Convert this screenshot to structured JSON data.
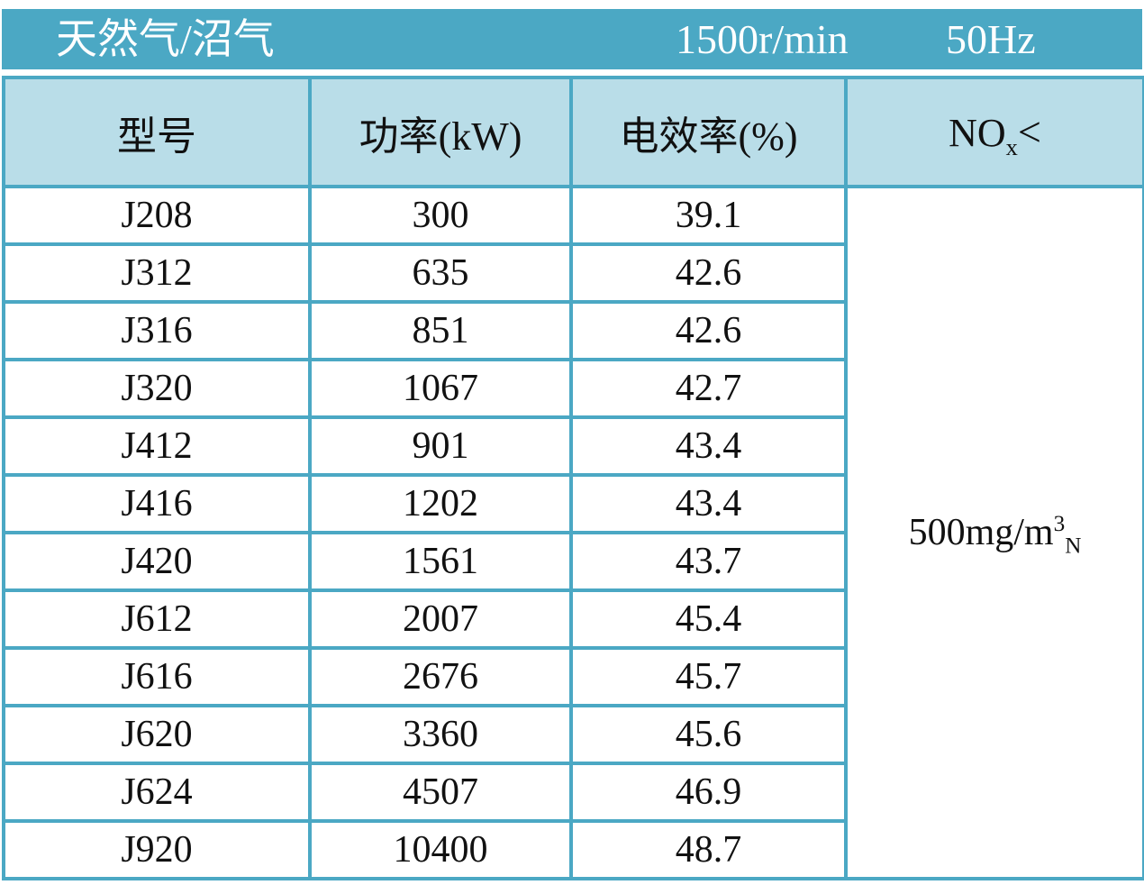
{
  "colors": {
    "teal": "#4BA8C4",
    "light_blue": "#B9DDE8",
    "title_text": "#ffffff",
    "body_text": "#111111"
  },
  "title_bar": {
    "fuel_type": "天然气/沼气",
    "speed": "1500r/min",
    "frequency": "50Hz"
  },
  "table": {
    "headers": {
      "model": "型号",
      "power": "功率(kW)",
      "efficiency": "电效率(%)",
      "nox_prefix": "NO",
      "nox_sub": "x",
      "nox_lt": "<"
    },
    "nox_limit": {
      "prefix": "500mg/m",
      "sup": "3",
      "sub": "N"
    },
    "rows": [
      {
        "model": "J208",
        "power": "300",
        "efficiency": "39.1"
      },
      {
        "model": "J312",
        "power": "635",
        "efficiency": "42.6"
      },
      {
        "model": "J316",
        "power": "851",
        "efficiency": "42.6"
      },
      {
        "model": "J320",
        "power": "1067",
        "efficiency": "42.7"
      },
      {
        "model": "J412",
        "power": "901",
        "efficiency": "43.4"
      },
      {
        "model": "J416",
        "power": "1202",
        "efficiency": "43.4"
      },
      {
        "model": "J420",
        "power": "1561",
        "efficiency": "43.7"
      },
      {
        "model": "J612",
        "power": "2007",
        "efficiency": "45.4"
      },
      {
        "model": "J616",
        "power": "2676",
        "efficiency": "45.7"
      },
      {
        "model": "J620",
        "power": "3360",
        "efficiency": "45.6"
      },
      {
        "model": "J624",
        "power": "4507",
        "efficiency": "46.9"
      },
      {
        "model": "J920",
        "power": "10400",
        "efficiency": "48.7"
      }
    ]
  }
}
